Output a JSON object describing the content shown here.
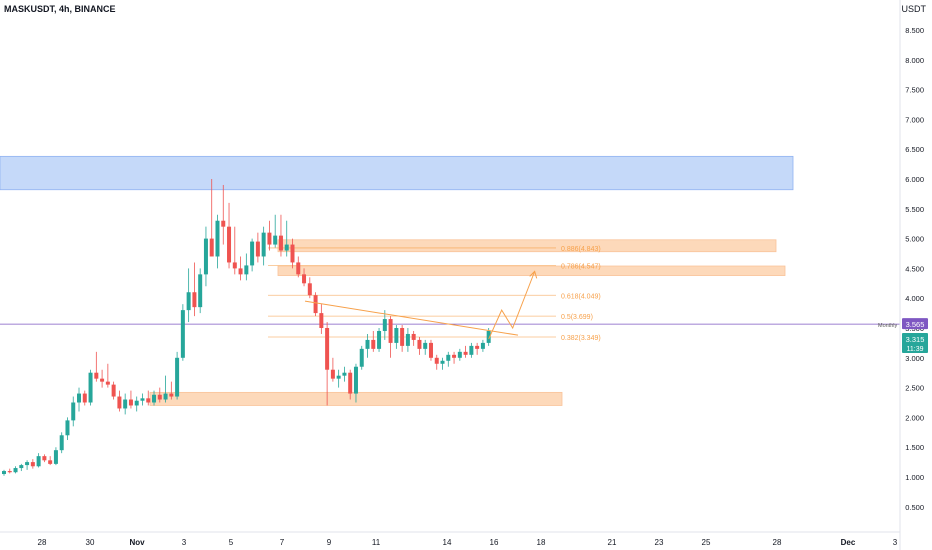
{
  "header": {
    "symbol": "MASKUSDT, 4h, BINANCE",
    "currency": "USDT"
  },
  "chart_data": {
    "type": "candlestick",
    "title": "",
    "ylim": [
      0.2,
      9.2
    ],
    "y_ticks": [
      "8.500",
      "8.000",
      "7.500",
      "7.000",
      "6.500",
      "6.000",
      "5.500",
      "5.000",
      "4.500",
      "4.000",
      "3.500",
      "3.000",
      "2.500",
      "2.000",
      "1.500",
      "1.000",
      "0.500"
    ],
    "x_ticks": [
      "28",
      "30",
      "Nov",
      "3",
      "5",
      "7",
      "9",
      "11",
      "14",
      "16",
      "18",
      "21",
      "23",
      "25",
      "28",
      "Dec",
      "3"
    ],
    "grid": false,
    "colors": {
      "up": "#26a69a",
      "down": "#ef5350",
      "fib": "#f7a14b",
      "zone_blue": "#bbd3f8",
      "zone_orange": "#fdd3ae",
      "monthly_line": "#7e57c2"
    },
    "fib_levels": [
      {
        "label": "0.886(4.843)",
        "value": 4.843
      },
      {
        "label": "0.786(4.547)",
        "value": 4.547
      },
      {
        "label": "0.618(4.049)",
        "value": 4.049
      },
      {
        "label": "0.5(3.699)",
        "value": 3.699
      },
      {
        "label": "0.382(3.349)",
        "value": 3.349
      }
    ],
    "zones": [
      {
        "color": "blue",
        "low": 5.82,
        "high": 6.38
      },
      {
        "color": "orange",
        "low": 2.2,
        "high": 2.42
      }
    ],
    "horizontal_line": {
      "label": "Monthly",
      "value": 3.565
    },
    "price_tags": [
      {
        "label": "3.565",
        "color": "#7e57c2"
      },
      {
        "label": "3.315",
        "sublabel": "11:39",
        "color": "#26a69a"
      }
    ],
    "trendline": {
      "from": [
        3.95
      ],
      "to": [
        3.38
      ]
    },
    "projection": [
      3.315,
      3.8,
      3.5,
      4.45
    ],
    "candles": [
      [
        1.05,
        1.12,
        1.02,
        1.1
      ],
      [
        1.1,
        1.14,
        1.06,
        1.08
      ],
      [
        1.08,
        1.18,
        1.06,
        1.15
      ],
      [
        1.15,
        1.22,
        1.1,
        1.2
      ],
      [
        1.2,
        1.28,
        1.12,
        1.25
      ],
      [
        1.25,
        1.3,
        1.14,
        1.18
      ],
      [
        1.18,
        1.4,
        1.16,
        1.35
      ],
      [
        1.35,
        1.38,
        1.25,
        1.28
      ],
      [
        1.28,
        1.35,
        1.2,
        1.22
      ],
      [
        1.22,
        1.5,
        1.2,
        1.45
      ],
      [
        1.45,
        1.75,
        1.4,
        1.7
      ],
      [
        1.7,
        2.0,
        1.62,
        1.95
      ],
      [
        1.95,
        2.35,
        1.85,
        2.25
      ],
      [
        2.25,
        2.5,
        2.1,
        2.4
      ],
      [
        2.4,
        2.45,
        2.2,
        2.25
      ],
      [
        2.25,
        2.8,
        2.2,
        2.75
      ],
      [
        2.75,
        3.1,
        2.6,
        2.65
      ],
      [
        2.65,
        2.8,
        2.5,
        2.6
      ],
      [
        2.6,
        2.9,
        2.5,
        2.55
      ],
      [
        2.55,
        2.6,
        2.3,
        2.35
      ],
      [
        2.35,
        2.45,
        2.1,
        2.15
      ],
      [
        2.15,
        2.4,
        2.05,
        2.3
      ],
      [
        2.3,
        2.45,
        2.15,
        2.2
      ],
      [
        2.2,
        2.35,
        2.1,
        2.28
      ],
      [
        2.28,
        2.4,
        2.2,
        2.32
      ],
      [
        2.32,
        2.45,
        2.2,
        2.25
      ],
      [
        2.25,
        2.45,
        2.2,
        2.38
      ],
      [
        2.38,
        2.5,
        2.25,
        2.3
      ],
      [
        2.3,
        2.7,
        2.25,
        2.4
      ],
      [
        2.4,
        2.6,
        2.3,
        2.35
      ],
      [
        2.35,
        3.1,
        2.3,
        3.0
      ],
      [
        3.0,
        3.9,
        2.95,
        3.8
      ],
      [
        3.8,
        4.5,
        3.6,
        4.1
      ],
      [
        4.1,
        4.6,
        3.7,
        3.85
      ],
      [
        3.85,
        4.5,
        3.75,
        4.4
      ],
      [
        4.4,
        5.2,
        4.2,
        5.0
      ],
      [
        5.0,
        6.0,
        4.7,
        4.7
      ],
      [
        4.7,
        5.4,
        4.5,
        5.3
      ],
      [
        5.3,
        5.9,
        4.9,
        5.2
      ],
      [
        5.2,
        5.6,
        4.5,
        4.6
      ],
      [
        4.6,
        5.2,
        4.4,
        4.5
      ],
      [
        4.5,
        4.7,
        4.3,
        4.4
      ],
      [
        4.4,
        4.75,
        4.3,
        4.55
      ],
      [
        4.55,
        5.0,
        4.45,
        4.95
      ],
      [
        4.95,
        5.1,
        4.6,
        4.7
      ],
      [
        4.7,
        5.2,
        4.55,
        5.1
      ],
      [
        5.1,
        5.3,
        4.8,
        4.9
      ],
      [
        4.9,
        5.4,
        4.85,
        5.05
      ],
      [
        5.05,
        5.4,
        4.7,
        4.8
      ],
      [
        4.8,
        5.3,
        4.7,
        4.9
      ],
      [
        4.9,
        5.0,
        4.5,
        4.6
      ],
      [
        4.6,
        4.7,
        4.35,
        4.4
      ],
      [
        4.4,
        4.5,
        4.2,
        4.25
      ],
      [
        4.25,
        4.35,
        4.0,
        4.05
      ],
      [
        4.05,
        4.1,
        3.7,
        3.75
      ],
      [
        3.75,
        3.9,
        3.4,
        3.5
      ],
      [
        3.5,
        3.6,
        2.2,
        2.8
      ],
      [
        2.8,
        3.0,
        2.6,
        2.65
      ],
      [
        2.65,
        2.8,
        2.5,
        2.7
      ],
      [
        2.7,
        2.85,
        2.6,
        2.75
      ],
      [
        2.75,
        2.8,
        2.3,
        2.4
      ],
      [
        2.4,
        2.9,
        2.25,
        2.85
      ],
      [
        2.85,
        3.2,
        2.8,
        3.15
      ],
      [
        3.15,
        3.4,
        3.0,
        3.3
      ],
      [
        3.3,
        3.45,
        3.1,
        3.15
      ],
      [
        3.15,
        3.5,
        3.1,
        3.45
      ],
      [
        3.45,
        3.8,
        3.3,
        3.65
      ],
      [
        3.65,
        3.7,
        3.0,
        3.25
      ],
      [
        3.25,
        3.55,
        3.15,
        3.5
      ],
      [
        3.5,
        3.55,
        3.1,
        3.2
      ],
      [
        3.2,
        3.5,
        3.1,
        3.4
      ],
      [
        3.4,
        3.45,
        3.2,
        3.3
      ],
      [
        3.3,
        3.35,
        3.05,
        3.15
      ],
      [
        3.15,
        3.3,
        3.05,
        3.25
      ],
      [
        3.25,
        3.3,
        2.95,
        3.0
      ],
      [
        3.0,
        3.05,
        2.8,
        2.9
      ],
      [
        2.9,
        3.0,
        2.8,
        2.95
      ],
      [
        2.95,
        3.1,
        2.85,
        3.05
      ],
      [
        3.05,
        3.1,
        2.9,
        3.0
      ],
      [
        3.0,
        3.15,
        2.95,
        3.1
      ],
      [
        3.1,
        3.2,
        3.0,
        3.05
      ],
      [
        3.05,
        3.25,
        3.0,
        3.2
      ],
      [
        3.2,
        3.25,
        3.05,
        3.15
      ],
      [
        3.15,
        3.3,
        3.1,
        3.25
      ],
      [
        3.25,
        3.5,
        3.2,
        3.45
      ]
    ]
  }
}
